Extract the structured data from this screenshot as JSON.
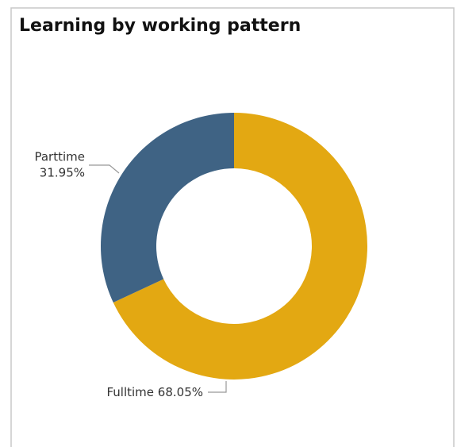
{
  "chart_data": {
    "type": "donut",
    "title": "Learning by working pattern",
    "categories": [
      "Fulltime",
      "Parttime"
    ],
    "values": [
      68.05,
      31.95
    ],
    "value_labels": [
      "68.05%",
      "31.95%"
    ],
    "colors": [
      "#e3a812",
      "#3f6384"
    ]
  }
}
